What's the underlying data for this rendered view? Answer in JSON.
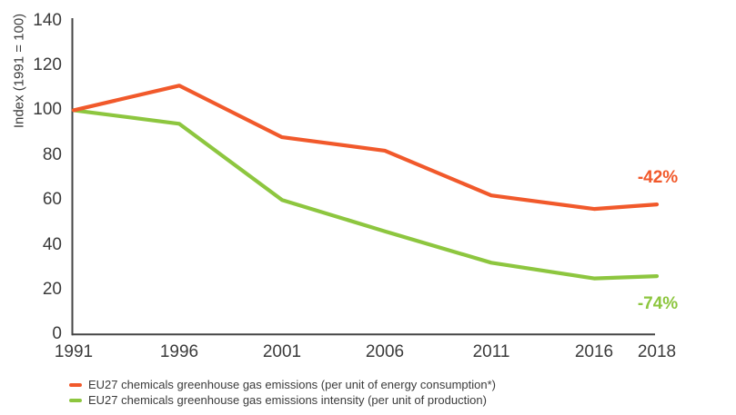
{
  "chart_data": {
    "type": "line",
    "title": "",
    "xlabel": "",
    "ylabel": "Index (1991 = 100)",
    "x": [
      1991,
      1996,
      2001,
      2006,
      2011,
      2016,
      2018
    ],
    "x_tick_labels": [
      "1991",
      "1996",
      "2001",
      "2006",
      "2011",
      "2016",
      "2018"
    ],
    "y_tick_labels": [
      "140",
      "120",
      "100",
      "80",
      "60",
      "40",
      "20",
      "0"
    ],
    "ylim": [
      0,
      140
    ],
    "y_tick_step": 20,
    "grid": false,
    "legend_position": "bottom-left",
    "series": [
      {
        "name": "EU27 chemicals greenhouse gas emissions (per unit of energy consumption*)",
        "color": "#F1592B",
        "values": [
          100,
          111,
          88,
          82,
          62,
          56,
          58
        ],
        "end_annotation": "-42%"
      },
      {
        "name": "EU27 chemicals greenhouse gas emissions intensity (per unit of production)",
        "color": "#8DC63F",
        "values": [
          100,
          94,
          60,
          46,
          32,
          25,
          26
        ],
        "end_annotation": "-74%"
      }
    ]
  }
}
